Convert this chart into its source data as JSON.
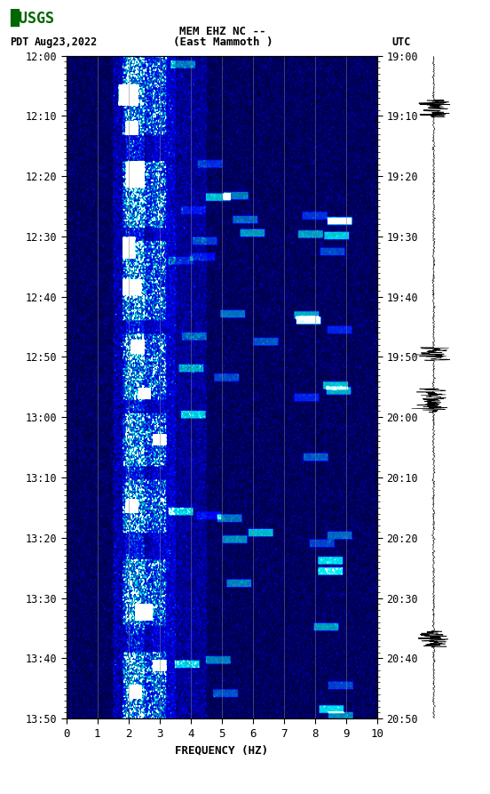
{
  "title_line1": "MEM EHZ NC --",
  "title_line2": "(East Mammoth )",
  "date_label": "Aug23,2022",
  "tz_left": "PDT",
  "tz_right": "UTC",
  "left_times": [
    "12:00",
    "12:10",
    "12:20",
    "12:30",
    "12:40",
    "12:50",
    "13:00",
    "13:10",
    "13:20",
    "13:30",
    "13:40",
    "13:50"
  ],
  "right_times": [
    "19:00",
    "19:10",
    "19:20",
    "19:30",
    "19:40",
    "19:50",
    "20:00",
    "20:10",
    "20:20",
    "20:30",
    "20:40",
    "20:50"
  ],
  "freq_min": 0,
  "freq_max": 10,
  "freq_ticks": [
    0,
    1,
    2,
    3,
    4,
    5,
    6,
    7,
    8,
    9,
    10
  ],
  "freq_label": "FREQUENCY (HZ)",
  "fig_bg": "#ffffff",
  "grid_color": "#808080",
  "fig_width": 5.52,
  "fig_height": 8.93
}
